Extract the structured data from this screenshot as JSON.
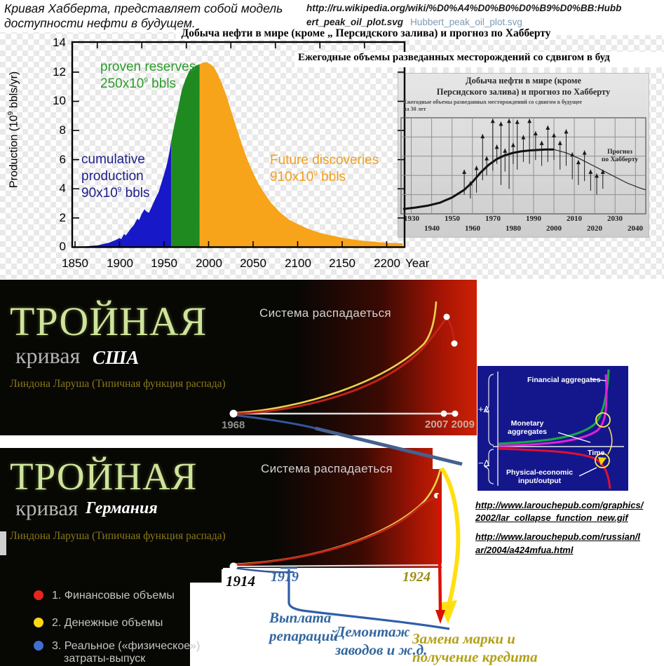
{
  "colors": {
    "area_blue": "#1718c8",
    "area_green": "#1f8a1f",
    "area_orange": "#f7a41b",
    "accent_red": "#cc2105",
    "legend_red": "#e6251c",
    "legend_yellow": "#ffd718",
    "legend_blue": "#3f6fd0",
    "inset_navy": "#14178c",
    "green_curve": "#18a54a",
    "magenta_curve": "#e020d8",
    "red_curve": "#e01030"
  },
  "header": {
    "caption_line1": "Кривая Хабберта, представляет собой модель",
    "caption_line2": "доступности нефти в будущем.",
    "url_line1": "http://ru.wikipedia.org/wiki/%D0%A4%D0%B0%D0%B9%D0%BB:Hubb",
    "url_line2": "ert_peak_oil_plot.svg",
    "file_link": "Hubbert_peak_oil_plot.svg"
  },
  "hubbert": {
    "title": "Добыча нефти в мире (кроме „ Персидского залива) и прогноз по Хабберту",
    "right_note": "Ежегодные объемы разведанных месторождений со сдвигом в буд",
    "ylabel_pre": "Production (10",
    "ylabel_sup": "9",
    "ylabel_post": " bbls/yr)",
    "y_ticks": [
      "14",
      "12",
      "10",
      "8",
      "6",
      "4",
      "2",
      "0"
    ],
    "x_ticks": [
      "1850",
      "1900",
      "1950",
      "2000",
      "2050",
      "2100",
      "2150",
      "2200"
    ],
    "x_suffix": "Year",
    "labels": {
      "proven": {
        "line1": "proven reserves",
        "pre": "250x10",
        "sup": "9",
        "post": " bbls"
      },
      "cumulative": {
        "line1": "cumulative",
        "line2": "production",
        "pre": "90x10",
        "sup": "9",
        "post": " bbls"
      },
      "future": {
        "line1": "Future discoveries",
        "pre": "910x10",
        "sup": "9",
        "post": " bbls"
      }
    }
  },
  "inset": {
    "title_line1": "Добыча нефти в мире (кроме",
    "title_line2": "Персидского залива) и прогноз по Хабберту",
    "subtitle_line1": "Ежегодные объемы разведанных месторождений со сдвигом в будущее",
    "subtitle_line2": "на 30 лет",
    "forecast_line1": "Прогноз",
    "forecast_line2": "по Хабберту",
    "x_row1": [
      "1930",
      "1950",
      "1970",
      "1990",
      "2010",
      "2030"
    ],
    "x_row2": [
      "1940",
      "1960",
      "1980",
      "2000",
      "2020",
      "2040"
    ]
  },
  "usa_panel": {
    "title_big": "ТРОЙНАЯ",
    "title_sub": "кривая",
    "country": "США",
    "credit": "Линдона Ларуша (Типичная функция распада)",
    "note": "Система распадаеться",
    "year_start": "1968",
    "year_end": "2007 2009"
  },
  "germany_panel": {
    "title_big": "ТРОЙНАЯ",
    "title_sub": "кривая",
    "country": "Германия",
    "credit": "Линдона Ларуша (Типичная функция распада)",
    "note": "Система распадаеться",
    "year_start": "1914",
    "year_mid": "1919",
    "year_end": "1924"
  },
  "legend": {
    "items": [
      {
        "label": "1. Финансовые объемы",
        "color": "#e6251c"
      },
      {
        "label": "2. Денежные объемы",
        "color": "#ffd718"
      },
      {
        "label": "3. Реальное («физическое»)",
        "label2": "затраты-выпуск",
        "color": "#3f6fd0"
      }
    ]
  },
  "annotations": {
    "reparations_line1": "Выплата",
    "reparations_line2": "репараций",
    "dismantle_line1": "Демонтаж",
    "dismantle_line2": "заводов и ж.д.",
    "mark_line1": "Замена марки и",
    "mark_line2": "получение кредита"
  },
  "larouche": {
    "financial": "Financial aggregates",
    "monetary_line1": "Monetary",
    "monetary_line2": "aggregates",
    "physical_line1": "Physical-economic",
    "physical_line2": "input/output",
    "time": "Time",
    "plus_delta": "+Δ",
    "minus_delta": "−Δ"
  },
  "links": [
    {
      "text": "http://www.larouchepub.com/graphics/2002/lar_collapse_function_new.gif"
    },
    {
      "text": "http://www.larouchepub.com/russian/lar/2004/a424mfua.html"
    }
  ],
  "chart_data": [
    {
      "id": "hubbert_world_oil",
      "type": "area",
      "title": "Добыча нефти в мире (кроме „ Персидского залива) и прогноз по Хабберту",
      "xlabel": "Year",
      "ylabel": "Production (10^9 bbls/yr)",
      "ylim": [
        0,
        14
      ],
      "xlim": [
        1850,
        2200
      ],
      "regions": [
        {
          "name": "cumulative production",
          "total": "90x10^9 bbls",
          "color": "#1718c8",
          "points": [
            [
              1860,
              0.05
            ],
            [
              1875,
              0.12
            ],
            [
              1888,
              0.3
            ],
            [
              1896,
              0.5
            ],
            [
              1900,
              0.62
            ],
            [
              1902,
              0.55
            ],
            [
              1905,
              0.9
            ],
            [
              1907,
              0.8
            ],
            [
              1910,
              1.05
            ],
            [
              1913,
              1.3
            ],
            [
              1916,
              1.5
            ],
            [
              1920,
              1.95
            ],
            [
              1922,
              1.85
            ],
            [
              1925,
              2.3
            ],
            [
              1928,
              2.6
            ],
            [
              1930,
              2.45
            ],
            [
              1933,
              2.35
            ],
            [
              1936,
              2.75
            ],
            [
              1940,
              3.3
            ],
            [
              1944,
              3.8
            ],
            [
              1948,
              4.6
            ],
            [
              1950,
              5.0
            ],
            [
              1952,
              5.4
            ],
            [
              1954,
              5.9
            ],
            [
              1956,
              6.5
            ],
            [
              1958,
              7.3
            ]
          ]
        },
        {
          "name": "proven reserves",
          "total": "250x10^9 bbls",
          "color": "#1f8a1f",
          "points": [
            [
              1958,
              7.3
            ],
            [
              1960,
              7.9
            ],
            [
              1963,
              8.8
            ],
            [
              1966,
              9.6
            ],
            [
              1970,
              10.8
            ],
            [
              1974,
              11.5
            ],
            [
              1978,
              12.05
            ],
            [
              1982,
              12.3
            ],
            [
              1986,
              12.45
            ],
            [
              1990,
              12.55
            ]
          ]
        },
        {
          "name": "Future discoveries",
          "total": "910x10^9 bbls",
          "color": "#f7a41b",
          "points": [
            [
              1990,
              12.55
            ],
            [
              1994,
              12.65
            ],
            [
              1998,
              12.68
            ],
            [
              2002,
              12.55
            ],
            [
              2006,
              12.35
            ],
            [
              2010,
              11.9
            ],
            [
              2015,
              11.2
            ],
            [
              2020,
              10.4
            ],
            [
              2025,
              9.4
            ],
            [
              2030,
              8.45
            ],
            [
              2035,
              7.5
            ],
            [
              2040,
              6.6
            ],
            [
              2045,
              5.8
            ],
            [
              2050,
              5.1
            ],
            [
              2056,
              4.35
            ],
            [
              2062,
              3.75
            ],
            [
              2070,
              3.05
            ],
            [
              2080,
              2.4
            ],
            [
              2090,
              1.9
            ],
            [
              2100,
              1.58
            ],
            [
              2112,
              1.25
            ],
            [
              2124,
              1.0
            ],
            [
              2136,
              0.82
            ],
            [
              2150,
              0.65
            ],
            [
              2165,
              0.5
            ],
            [
              2180,
              0.4
            ],
            [
              2200,
              0.3
            ],
            [
              2218,
              0.26
            ]
          ]
        }
      ]
    },
    {
      "id": "inset_discoveries",
      "type": "line",
      "title": "Добыча нефти в мире (кроме Персидского залива) и прогноз по Хабберту",
      "subtitle": "Ежегодные объемы разведанных месторождений со сдвигом в будущее на 30 лет",
      "annotation": "Прогноз по Хабберту",
      "x_ticks": [
        1930,
        1940,
        1950,
        1960,
        1970,
        1980,
        1990,
        2000,
        2010,
        2020,
        2030,
        2040
      ],
      "curve": [
        [
          1926,
          0.5
        ],
        [
          1932,
          0.65
        ],
        [
          1938,
          0.85
        ],
        [
          1944,
          1.15
        ],
        [
          1950,
          1.7
        ],
        [
          1956,
          2.5
        ],
        [
          1960,
          3.3
        ],
        [
          1964,
          4.3
        ],
        [
          1968,
          5.1
        ],
        [
          1972,
          5.7
        ],
        [
          1976,
          6.1
        ],
        [
          1980,
          6.35
        ],
        [
          1984,
          6.5
        ],
        [
          1988,
          6.6
        ],
        [
          1992,
          6.65
        ],
        [
          1996,
          6.7
        ],
        [
          2000,
          6.7
        ]
      ],
      "forecast": [
        [
          2000,
          6.7
        ],
        [
          2006,
          6.35
        ],
        [
          2012,
          5.8
        ],
        [
          2018,
          5.15
        ],
        [
          2024,
          4.5
        ],
        [
          2030,
          3.85
        ],
        [
          2036,
          3.2
        ],
        [
          2042,
          2.7
        ],
        [
          2045,
          2.5
        ]
      ],
      "spikes": [
        [
          1956,
          4.6,
          2.0
        ],
        [
          1959,
          3.4,
          1.6
        ],
        [
          1962,
          5.0,
          2.2
        ],
        [
          1965,
          8.3,
          3.5
        ],
        [
          1967,
          6.0,
          4.0
        ],
        [
          1970,
          9.9,
          4.5
        ],
        [
          1972,
          7.2,
          5.2
        ],
        [
          1974,
          9.6,
          3.0
        ],
        [
          1976,
          6.8,
          4.4
        ],
        [
          1978,
          9.9,
          2.6
        ],
        [
          1980,
          7.4,
          5.2
        ],
        [
          1982,
          9.8,
          4.6
        ],
        [
          1985,
          8.2,
          5.4
        ],
        [
          1988,
          9.9,
          5.2
        ],
        [
          1991,
          8.6,
          5.6
        ],
        [
          1994,
          7.6,
          5.0
        ],
        [
          1997,
          9.2,
          5.4
        ],
        [
          2000,
          8.4,
          5.6
        ],
        [
          2003,
          7.6,
          4.6
        ],
        [
          2006,
          8.8,
          5.0
        ],
        [
          2009,
          6.4,
          3.6
        ],
        [
          2012,
          5.6,
          3.0
        ],
        [
          2015,
          6.6,
          3.4
        ],
        [
          2018,
          4.6,
          2.4
        ],
        [
          2021,
          4.2,
          2.0
        ],
        [
          2024,
          4.6,
          2.6
        ]
      ]
    },
    {
      "id": "triple_curve_usa",
      "type": "line",
      "note": "Система распадаеться",
      "x_points": [
        "1968",
        "2007",
        "2009"
      ],
      "series": [
        "1. Финансовые объемы (красная)",
        "2. Денежные объемы (желтая)",
        "3. Реальное затраты-выпуск (синяя)"
      ]
    },
    {
      "id": "triple_curve_germany",
      "type": "line",
      "note": "Система распадаеться",
      "x_points": [
        "1914",
        "1919",
        "1924"
      ],
      "series": [
        "1. Финансовые объемы (красная)",
        "2. Денежные объемы (желтая)",
        "3. Реальное затраты-выпуск (синяя)"
      ]
    },
    {
      "id": "larouche_collapse_function",
      "type": "line",
      "xlabel": "Time",
      "series": [
        "Financial aggregates",
        "Monetary aggregates",
        "Physical-economic input/output"
      ],
      "y_annotations": [
        "+Δ",
        "−Δ"
      ]
    }
  ]
}
